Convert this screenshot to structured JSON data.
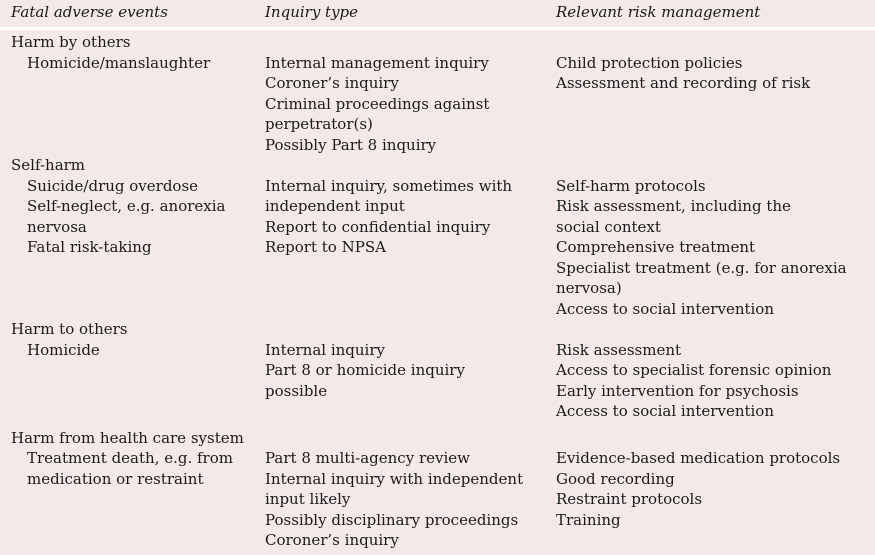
{
  "header": {
    "col1": "Fatal adverse events",
    "col2": "Inquiry type",
    "col3": "Relevant risk management"
  },
  "sections": [
    {
      "title": "Harm by others",
      "events": [
        "Homicide/manslaughter"
      ],
      "inquiry": [
        "Internal management inquiry",
        "Coroner’s inquiry",
        "Criminal proceedings against",
        "perpetrator(s)",
        "Possibly Part 8 inquiry"
      ],
      "risk": [
        "Child protection policies",
        "Assessment and recording of risk"
      ]
    },
    {
      "title": "Self-harm",
      "events": [
        "Suicide/drug overdose",
        "Self-neglect, e.g. anorexia",
        "nervosa",
        "Fatal risk-taking"
      ],
      "inquiry": [
        "Internal inquiry, sometimes with",
        "independent input",
        "Report to confidential inquiry",
        "Report to NPSA"
      ],
      "risk": [
        "Self-harm protocols",
        "Risk assessment, including the",
        "social context",
        "Comprehensive treatment",
        "Specialist treatment (e.g. for anorexia",
        "nervosa)",
        "Access to social intervention"
      ]
    },
    {
      "title": "Harm to others",
      "events": [
        "Homicide"
      ],
      "inquiry": [
        "Internal inquiry",
        "Part 8 or homicide inquiry",
        "possible"
      ],
      "risk": [
        "Risk assessment",
        "Access to specialist forensic opinion",
        "Early intervention for psychosis",
        "Access to social intervention"
      ]
    },
    {
      "title": "Harm from health care system",
      "events": [
        "Treatment death, e.g. from",
        "medication or restraint"
      ],
      "inquiry": [
        "Part 8 multi-agency review",
        "Internal inquiry with independent",
        "input likely",
        "Possibly disciplinary proceedings",
        "Coroner’s inquiry"
      ],
      "risk": [
        "Evidence-based medication protocols",
        "Good recording",
        "Restraint protocols",
        "Training"
      ]
    }
  ]
}
